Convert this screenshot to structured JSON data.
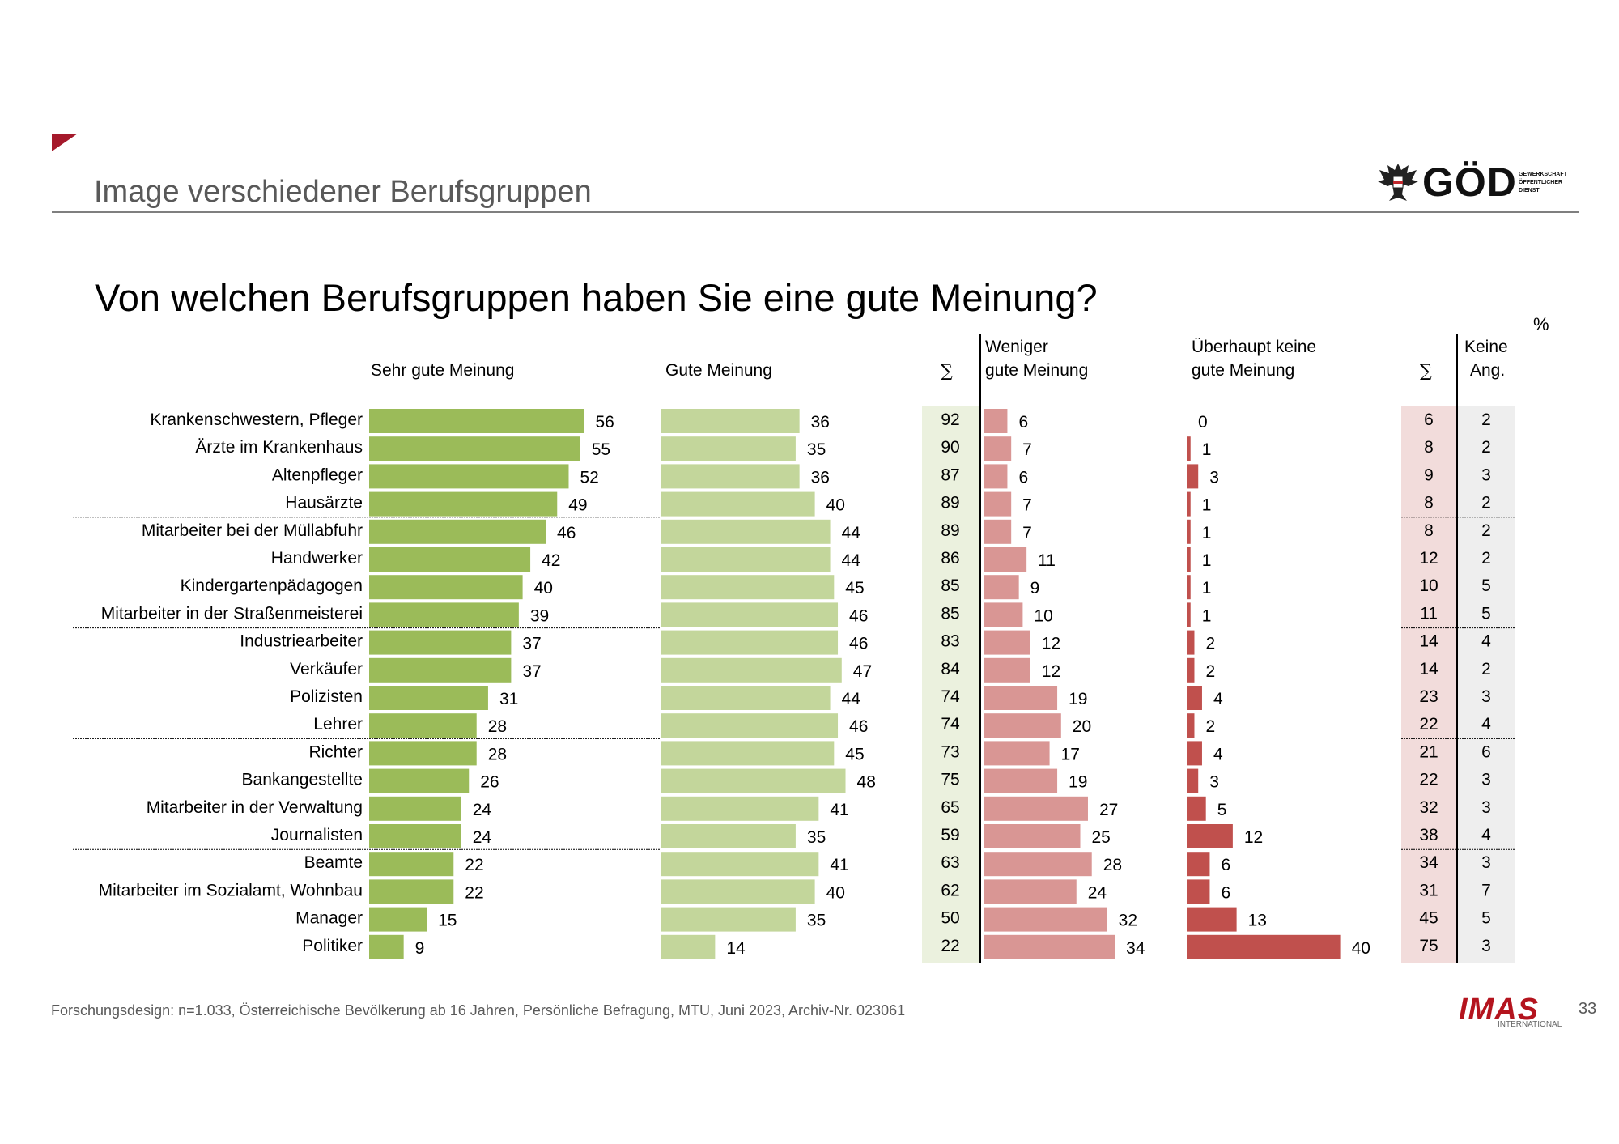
{
  "header": {
    "section_title": "Image verschiedener Berufsgruppen",
    "logo_god": "GÖD",
    "logo_god_sub": [
      "GEWERKSCHAFT",
      "ÖFFENTLICHER",
      "DIENST"
    ]
  },
  "question": "Von welchen Berufsgruppen haben Sie eine gute Meinung?",
  "percent_symbol": "%",
  "columns": {
    "sehr_gut": "Sehr gute Meinung",
    "gut": "Gute Meinung",
    "sum": "∑",
    "weniger_line1": "Weniger",
    "weniger_line2": "gute Meinung",
    "keine_line1": "Überhaupt keine",
    "keine_line2": "gute Meinung",
    "keine_ang_line1": "Keine",
    "keine_ang_line2": "Ang."
  },
  "footer": {
    "text": "Forschungsdesign: n=1.033, Österreichische Bevölkerung ab 16 Jahren, Persönliche Befragung, MTU, Juni 2023, Archiv-Nr. 023061",
    "page_number": "33",
    "logo_imas": "IMAS",
    "logo_imas_sub": "INTERNATIONAL"
  },
  "colors": {
    "sehr_gut": "#9bbb59",
    "gut": "#c3d69b",
    "sum_pos_bg": "#ebf1de",
    "weniger": "#d99694",
    "keine": "#c0504d",
    "sum_neg_bg": "#f2dcdb",
    "keine_ang_bg": "#eeeeee",
    "accent": "#a5192b"
  },
  "chart_data": {
    "type": "bar",
    "orientation": "horizontal",
    "title": "Von welchen Berufsgruppen haben Sie eine gute Meinung?",
    "unit": "%",
    "categories": [
      "Krankenschwestern, Pfleger",
      "Ärzte im Krankenhaus",
      "Altenpfleger",
      "Hausärzte",
      "Mitarbeiter bei der Müllabfuhr",
      "Handwerker",
      "Kindergartenpädagogen",
      "Mitarbeiter in der Straßenmeisterei",
      "Industriearbeiter",
      "Verkäufer",
      "Polizisten",
      "Lehrer",
      "Richter",
      "Bankangestellte",
      "Mitarbeiter in der Verwaltung",
      "Journalisten",
      "Beamte",
      "Mitarbeiter im Sozialamt, Wohnbau",
      "Manager",
      "Politiker"
    ],
    "series": [
      {
        "name": "Sehr gute Meinung",
        "values": [
          56,
          55,
          52,
          49,
          46,
          42,
          40,
          39,
          37,
          37,
          31,
          28,
          28,
          26,
          24,
          24,
          22,
          22,
          15,
          9
        ]
      },
      {
        "name": "Gute Meinung",
        "values": [
          36,
          35,
          36,
          40,
          44,
          44,
          45,
          46,
          46,
          47,
          44,
          46,
          45,
          48,
          41,
          35,
          41,
          40,
          35,
          14
        ]
      },
      {
        "name": "∑ positiv",
        "values": [
          92,
          90,
          87,
          89,
          89,
          86,
          85,
          85,
          83,
          84,
          74,
          74,
          73,
          75,
          65,
          59,
          63,
          62,
          50,
          22
        ]
      },
      {
        "name": "Weniger gute Meinung",
        "values": [
          6,
          7,
          6,
          7,
          7,
          11,
          9,
          10,
          12,
          12,
          19,
          20,
          17,
          19,
          27,
          25,
          28,
          24,
          32,
          34
        ]
      },
      {
        "name": "Überhaupt keine gute Meinung",
        "values": [
          0,
          1,
          3,
          1,
          1,
          1,
          1,
          1,
          2,
          2,
          4,
          2,
          4,
          3,
          5,
          12,
          6,
          6,
          13,
          40
        ]
      },
      {
        "name": "∑ negativ",
        "values": [
          6,
          8,
          9,
          8,
          8,
          12,
          10,
          11,
          14,
          14,
          23,
          22,
          21,
          22,
          32,
          38,
          34,
          31,
          45,
          75
        ]
      },
      {
        "name": "Keine Ang.",
        "values": [
          2,
          2,
          3,
          2,
          2,
          2,
          5,
          5,
          4,
          2,
          3,
          4,
          6,
          3,
          3,
          4,
          3,
          7,
          5,
          3
        ]
      }
    ],
    "group_separators_after": [
      4,
      8,
      12,
      16
    ]
  }
}
